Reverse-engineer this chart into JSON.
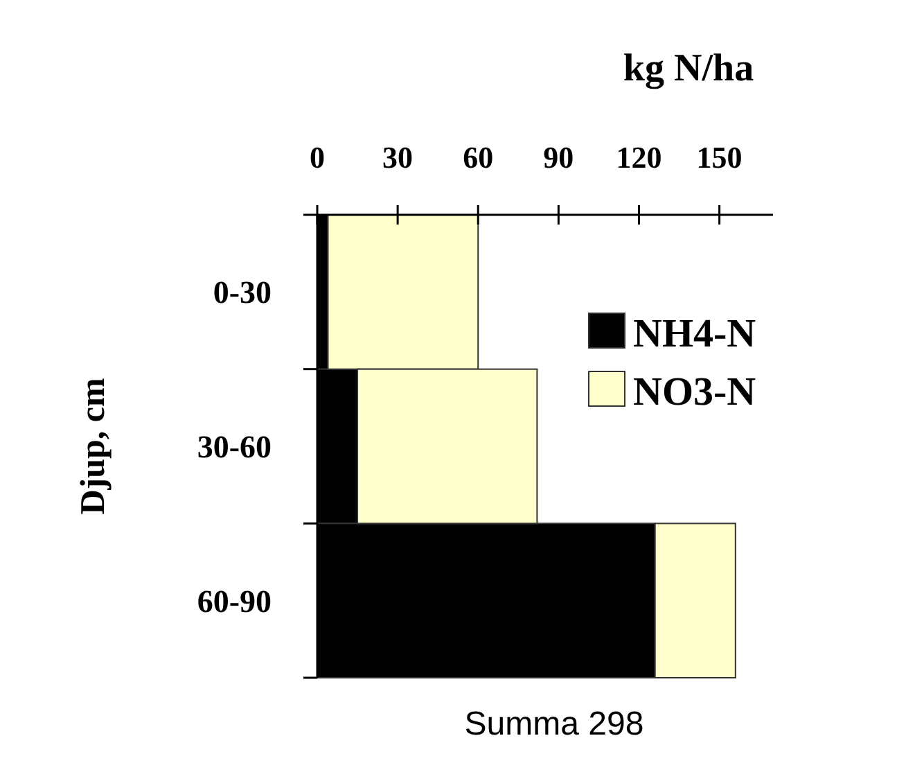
{
  "chart_data": {
    "type": "bar",
    "orientation": "horizontal",
    "stacked": true,
    "xlabel": "kg N/ha",
    "ylabel": "Djup, cm",
    "categories": [
      "0-30",
      "30-60",
      "60-90"
    ],
    "series": [
      {
        "name": "NH4-N",
        "color": "#000000",
        "values": [
          4,
          15,
          126
        ]
      },
      {
        "name": "NO3-N",
        "color": "#ffffcc",
        "values": [
          56,
          67,
          30
        ]
      }
    ],
    "xlim": [
      0,
      170
    ],
    "xticks": [
      0,
      30,
      60,
      90,
      120,
      150
    ],
    "legend": "right",
    "grid": false,
    "annotations": [
      "Summa 298"
    ]
  }
}
